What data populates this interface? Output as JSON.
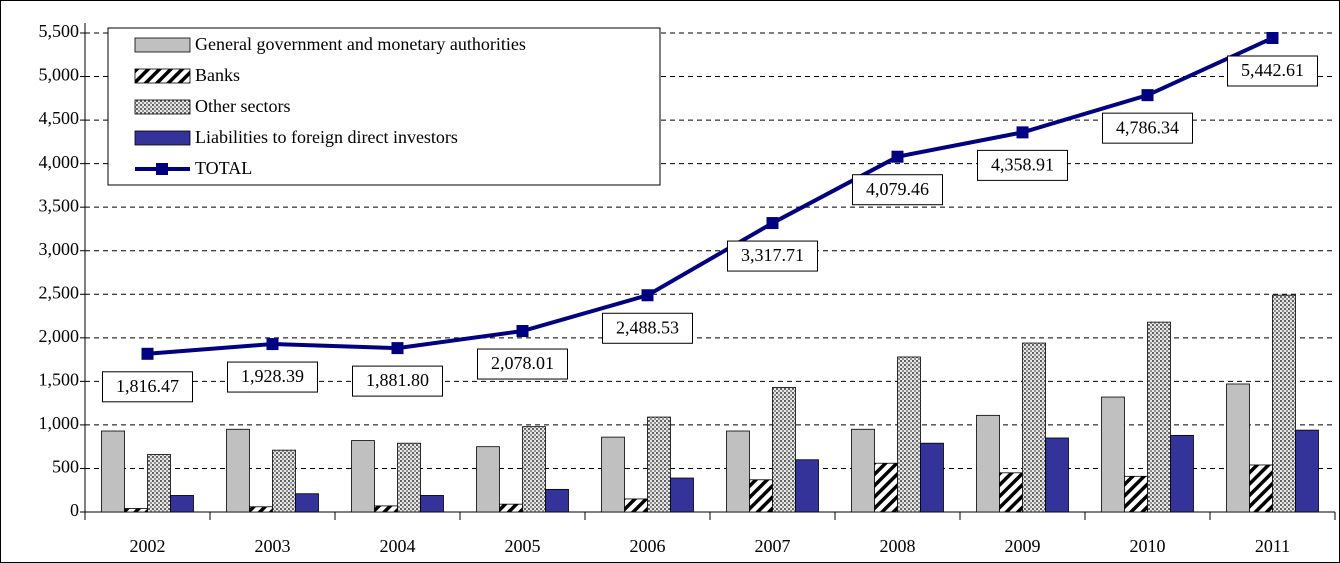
{
  "chart_data": {
    "type": "bar",
    "categories": [
      "2002",
      "2003",
      "2004",
      "2005",
      "2006",
      "2007",
      "2008",
      "2009",
      "2010",
      "2011"
    ],
    "series": [
      {
        "name": "General government and monetary authorities",
        "color": "#c0c0c0",
        "values": [
          930,
          950,
          820,
          750,
          860,
          930,
          950,
          1110,
          1320,
          1470
        ]
      },
      {
        "name": "Banks",
        "color": "#000000",
        "pattern": "hatch",
        "values": [
          40,
          60,
          70,
          90,
          150,
          370,
          560,
          450,
          410,
          540
        ]
      },
      {
        "name": "Other sectors",
        "color": "#808080",
        "pattern": "dots",
        "values": [
          660,
          710,
          790,
          980,
          1090,
          1430,
          1780,
          1940,
          2180,
          2490
        ]
      },
      {
        "name": "Liabilities to foreign direct investors",
        "color": "#333399",
        "values": [
          190,
          210,
          190,
          260,
          390,
          600,
          790,
          850,
          880,
          940
        ]
      },
      {
        "name": "TOTAL",
        "type": "line",
        "color": "#000080",
        "values": [
          1816.47,
          1928.39,
          1881.8,
          2078.01,
          2488.53,
          3317.71,
          4079.46,
          4358.91,
          4786.34,
          5442.61
        ],
        "value_labels": [
          "1,816.47",
          "1,928.39",
          "1,881.80",
          "2,078.01",
          "2,488.53",
          "3,317.71",
          "4,079.46",
          "4,358.91",
          "4,786.34",
          "5,442.61"
        ]
      }
    ],
    "ylim": [
      0,
      5500
    ],
    "yticks": [
      0,
      500,
      {
        "value": 1000,
        "label": "1,000"
      },
      {
        "value": 1500,
        "label": "1,500"
      },
      {
        "value": 2000,
        "label": "2,000"
      },
      {
        "value": 2500,
        "label": "2,500"
      },
      {
        "value": 3000,
        "label": "3,000"
      },
      {
        "value": 3500,
        "label": "3,500"
      },
      {
        "value": 4000,
        "label": "4,000"
      },
      {
        "value": 4500,
        "label": "4,500"
      },
      {
        "value": 5000,
        "label": "5,000"
      },
      {
        "value": 5500,
        "label": "5,500"
      }
    ],
    "grid": true,
    "legend": "upper left"
  }
}
